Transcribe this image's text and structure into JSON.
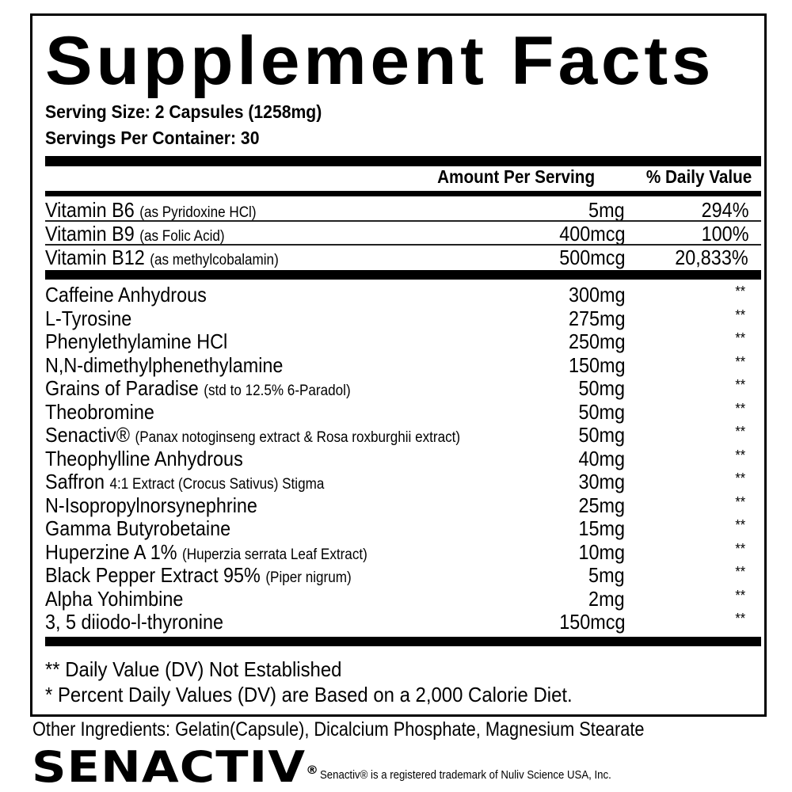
{
  "title": "Supplement Facts",
  "serving_size": "Serving Size: 2 Capsules (1258mg)",
  "servings_per_container": "Servings Per Container: 30",
  "headers": {
    "amount": "Amount Per Serving",
    "dv": "% Daily Value"
  },
  "vitamins": [
    {
      "name": "Vitamin B6",
      "detail": "(as Pyridoxine HCl)",
      "amount": "5mg",
      "dv": "294%"
    },
    {
      "name": "Vitamin B9",
      "detail": "(as Folic Acid)",
      "amount": "400mcg",
      "dv": "100%"
    },
    {
      "name": "Vitamin B12",
      "detail": "(as methylcobalamin)",
      "amount": "500mcg",
      "dv": "20,833%"
    }
  ],
  "ingredients": [
    {
      "name": "Caffeine Anhydrous",
      "detail": "",
      "amount": "300mg",
      "dv": "**"
    },
    {
      "name": "L-Tyrosine",
      "detail": "",
      "amount": "275mg",
      "dv": "**"
    },
    {
      "name": "Phenylethylamine HCl",
      "detail": "",
      "amount": "250mg",
      "dv": "**"
    },
    {
      "name": "N,N-dimethylphenethylamine",
      "detail": "",
      "amount": "150mg",
      "dv": "**"
    },
    {
      "name": "Grains of Paradise",
      "detail": "(std to 12.5% 6-Paradol)",
      "amount": "50mg",
      "dv": "**"
    },
    {
      "name": "Theobromine",
      "detail": "",
      "amount": "50mg",
      "dv": "**"
    },
    {
      "name": "Senactiv®",
      "detail": "(Panax notoginseng extract & Rosa roxburghii extract)",
      "amount": "50mg",
      "dv": "**"
    },
    {
      "name": "Theophylline Anhydrous",
      "detail": "",
      "amount": "40mg",
      "dv": "**"
    },
    {
      "name": "Saffron",
      "detail": "4:1 Extract (Crocus Sativus) Stigma",
      "amount": "30mg",
      "dv": "**"
    },
    {
      "name": "N-Isopropylnorsynephrine",
      "detail": "",
      "amount": "25mg",
      "dv": "**"
    },
    {
      "name": "Gamma Butyrobetaine",
      "detail": "",
      "amount": "15mg",
      "dv": "**"
    },
    {
      "name": "Huperzine A 1%",
      "detail": "(Huperzia serrata Leaf Extract)",
      "amount": "10mg",
      "dv": "**"
    },
    {
      "name": "Black Pepper Extract 95%",
      "detail": "(Piper nigrum)",
      "amount": "5mg",
      "dv": "**"
    },
    {
      "name": "Alpha Yohimbine",
      "detail": "",
      "amount": "2mg",
      "dv": "**"
    },
    {
      "name": "3, 5 diiodo-l-thyronine",
      "detail": "",
      "amount": "150mcg",
      "dv": "**"
    }
  ],
  "footnotes": [
    "** Daily Value (DV) Not Established",
    "* Percent Daily Values (DV) are Based on a 2,000 Calorie Diet."
  ],
  "other_ingredients": "Other Ingredients: Gelatin(Capsule), Dicalcium Phosphate, Magnesium Stearate",
  "logo": {
    "text": "SENACTIV",
    "mark": "®"
  },
  "trademark": "Senactiv® is a registered trademark of Nuliv Science USA, Inc."
}
